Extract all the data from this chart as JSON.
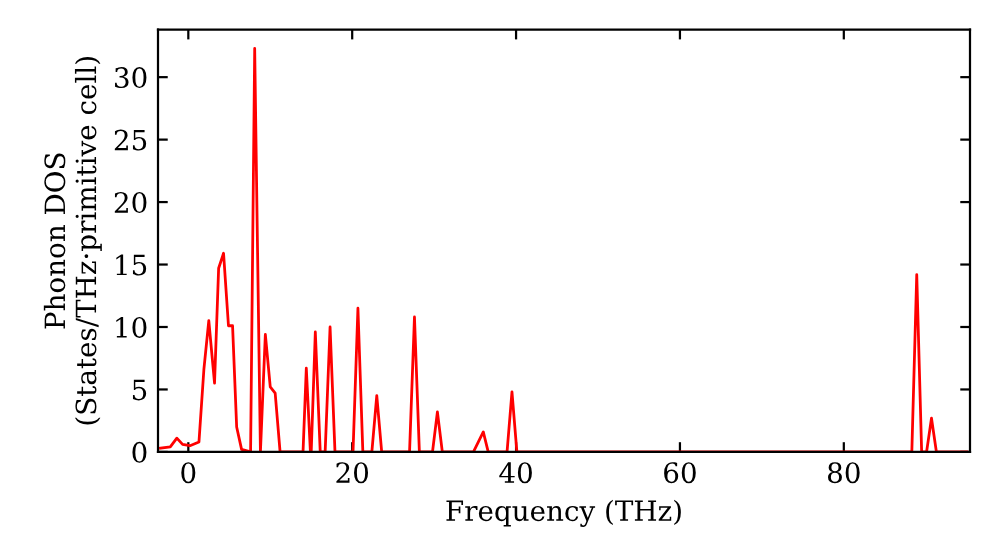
{
  "chart_data": {
    "type": "line",
    "xlabel": "Frequency (THz)",
    "ylabel": "Phonon DOS\n(States/THz·primitive cell)",
    "xlim": [
      -3.7,
      95.4
    ],
    "ylim": [
      0,
      33.8
    ],
    "xticks": [
      0,
      20,
      40,
      60,
      80
    ],
    "yticks": [
      0,
      5,
      10,
      15,
      20,
      25,
      30
    ],
    "grid": false,
    "legend": false,
    "marker": "none",
    "line_style": "solid",
    "series": [
      {
        "color": "#ff0000",
        "x": [
          -3.4,
          -2.2,
          -1.4,
          -0.7,
          0.2,
          1.3,
          1.9,
          2.5,
          3.2,
          3.7,
          4.3,
          4.9,
          5.4,
          5.9,
          6.5,
          7.6,
          8.1,
          8.8,
          9.4,
          10.0,
          10.6,
          11.2,
          14.0,
          14.4,
          14.9,
          15.0,
          15.5,
          16.1,
          16.7,
          17.3,
          17.9,
          20.1,
          20.7,
          21.3,
          22.4,
          23.0,
          23.6,
          27.0,
          27.6,
          28.2,
          29.8,
          30.4,
          31.0,
          34.8,
          36.0,
          36.6,
          38.9,
          39.5,
          40.1,
          88.3,
          88.9,
          89.5,
          90.1,
          90.7,
          91.3,
          95.0
        ],
        "values": [
          0.3,
          0.4,
          1.1,
          0.6,
          0.5,
          0.8,
          6.6,
          10.5,
          5.5,
          14.7,
          15.9,
          10.1,
          10.1,
          2.0,
          0.2,
          0,
          32.3,
          0,
          9.4,
          5.2,
          4.7,
          0,
          0,
          6.7,
          0,
          0,
          9.6,
          0,
          0,
          10.0,
          0,
          0,
          11.5,
          0,
          0,
          4.5,
          0,
          0,
          10.8,
          0,
          0,
          3.2,
          0,
          0,
          1.6,
          0,
          0,
          4.8,
          0,
          0,
          14.2,
          0,
          0,
          2.7,
          0,
          0
        ]
      }
    ]
  }
}
